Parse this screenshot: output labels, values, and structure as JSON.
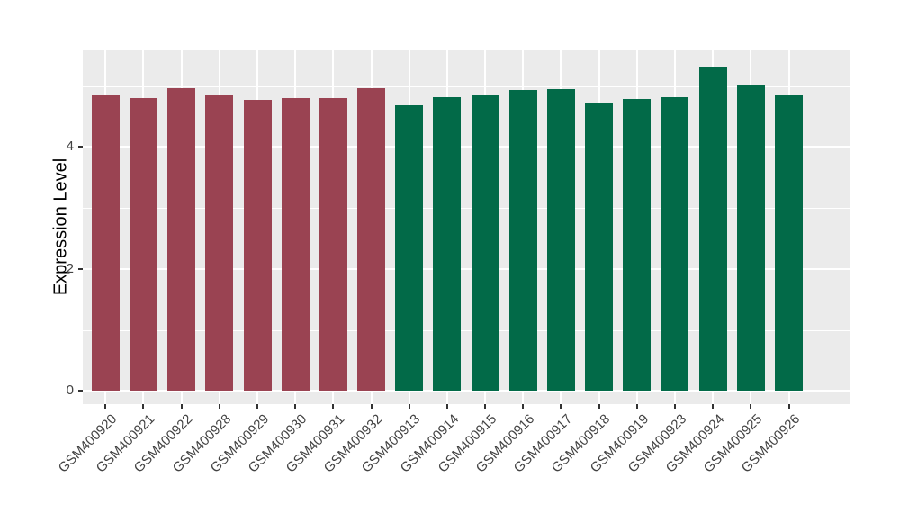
{
  "chart_data": {
    "type": "bar",
    "title": "",
    "xlabel": "",
    "ylabel": "Expression Level",
    "categories": [
      "GSM400920",
      "GSM400921",
      "GSM400922",
      "GSM400928",
      "GSM400929",
      "GSM400930",
      "GSM400931",
      "GSM400932",
      "GSM400913",
      "GSM400914",
      "GSM400915",
      "GSM400916",
      "GSM400917",
      "GSM400918",
      "GSM400919",
      "GSM400923",
      "GSM400924",
      "GSM400925",
      "GSM400926"
    ],
    "values": [
      4.85,
      4.8,
      4.96,
      4.85,
      4.77,
      4.8,
      4.8,
      4.96,
      4.68,
      4.81,
      4.85,
      4.93,
      4.95,
      4.71,
      4.79,
      4.82,
      5.31,
      5.03,
      4.85
    ],
    "colors": [
      "#9A4352",
      "#9A4352",
      "#9A4352",
      "#9A4352",
      "#9A4352",
      "#9A4352",
      "#9A4352",
      "#9A4352",
      "#026A48",
      "#026A48",
      "#026A48",
      "#026A48",
      "#026A48",
      "#026A48",
      "#026A48",
      "#026A48",
      "#026A48",
      "#026A48",
      "#026A48"
    ],
    "group_colors": {
      "left_group_red": "#9A4352",
      "right_group_green": "#026A48"
    },
    "yticks": [
      0,
      2,
      4
    ],
    "ytick_labels": [
      "0",
      "2",
      "4"
    ],
    "y_minor_ticks": [
      1,
      3,
      5
    ],
    "ylim": [
      -0.22,
      5.58
    ],
    "x_tick_rotation": 45,
    "grid": true,
    "legend": "none",
    "panel_background": "#EBEBEB",
    "grid_color": "#FFFFFF",
    "axis_text_color": "#424242",
    "tick_mark_color": "#333333"
  }
}
